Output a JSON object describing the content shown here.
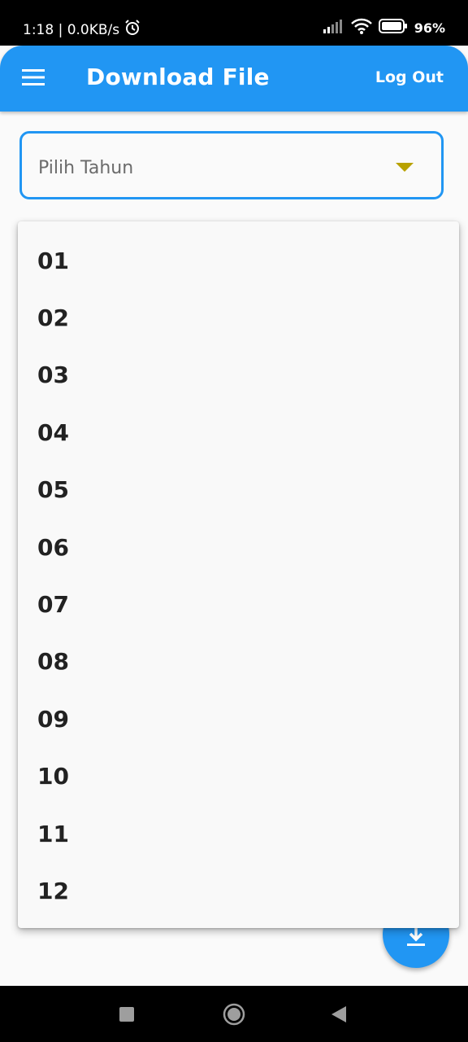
{
  "status_bar": {
    "time_speed": "1:18 | 0.0KB/s",
    "battery": "96%",
    "icons": [
      "alarm-icon",
      "signal-icon",
      "wifi-icon",
      "battery-icon"
    ]
  },
  "appbar": {
    "title": "Download File",
    "logout_label": "Log Out",
    "menu_icon": "hamburger-menu-icon",
    "color": "#2196f3"
  },
  "dropdown": {
    "hint": "Pilih Tahun",
    "arrow_icon": "dropdown-arrow-icon",
    "arrow_color": "#b8a100",
    "options": [
      "01",
      "02",
      "03",
      "04",
      "05",
      "06",
      "07",
      "08",
      "09",
      "10",
      "11",
      "12"
    ]
  },
  "fab": {
    "icon": "download-icon"
  },
  "nav_bar": {
    "icons": [
      "recent-apps-icon",
      "home-icon",
      "back-icon"
    ]
  }
}
